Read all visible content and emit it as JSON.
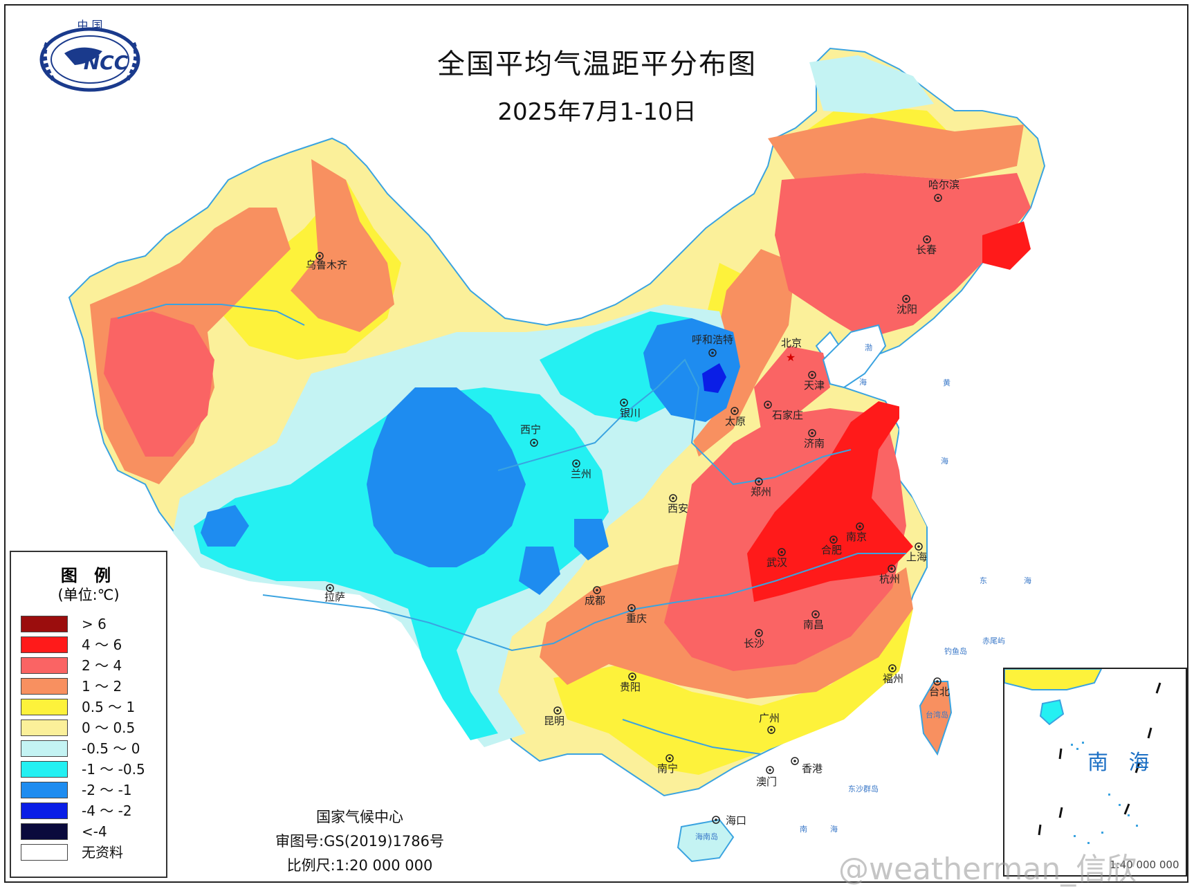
{
  "header": {
    "title": "全国平均气温距平分布图",
    "subtitle": "2025年7月1-10日"
  },
  "logo": {
    "top_text": "中 国",
    "badge_text": "NCC"
  },
  "legend": {
    "title": "图 例",
    "unit": "(单位:℃)",
    "items": [
      {
        "label": "> 6",
        "color": "#9b0d0d"
      },
      {
        "label": "4 ～ 6",
        "color": "#ff1a1a"
      },
      {
        "label": "2 ～ 4",
        "color": "#fa6464"
      },
      {
        "label": "1 ～ 2",
        "color": "#f89060"
      },
      {
        "label": "0.5 ～ 1",
        "color": "#fdf23b"
      },
      {
        "label": "0 ～ 0.5",
        "color": "#fbf09a"
      },
      {
        "label": "-0.5 ～ 0",
        "color": "#c4f3f3"
      },
      {
        "label": "-1 ～ -0.5",
        "color": "#24f0f2"
      },
      {
        "label": "-2 ～ -1",
        "color": "#1e8cf0"
      },
      {
        "label": "-4 ～ -2",
        "color": "#0a1ee6"
      },
      {
        "label": "<-4",
        "color": "#0a0a3c"
      },
      {
        "label": "无资料",
        "color": "#ffffff"
      }
    ]
  },
  "cities": [
    {
      "name": "乌鲁木齐"
    },
    {
      "name": "拉萨"
    },
    {
      "name": "西宁"
    },
    {
      "name": "兰州"
    },
    {
      "name": "银川"
    },
    {
      "name": "呼和浩特"
    },
    {
      "name": "北京"
    },
    {
      "name": "天津"
    },
    {
      "name": "石家庄"
    },
    {
      "name": "太原"
    },
    {
      "name": "济南"
    },
    {
      "name": "郑州"
    },
    {
      "name": "西安"
    },
    {
      "name": "成都"
    },
    {
      "name": "重庆"
    },
    {
      "name": "武汉"
    },
    {
      "name": "合肥"
    },
    {
      "name": "南京"
    },
    {
      "name": "上海"
    },
    {
      "name": "杭州"
    },
    {
      "name": "南昌"
    },
    {
      "name": "长沙"
    },
    {
      "name": "贵阳"
    },
    {
      "name": "昆明"
    },
    {
      "name": "南宁"
    },
    {
      "name": "广州"
    },
    {
      "name": "香港"
    },
    {
      "name": "澳门"
    },
    {
      "name": "海口"
    },
    {
      "name": "福州"
    },
    {
      "name": "台北"
    },
    {
      "name": "沈阳"
    },
    {
      "name": "长春"
    },
    {
      "name": "哈尔滨"
    }
  ],
  "sea_labels": [
    "渤",
    "海",
    "黄",
    "海",
    "东",
    "海",
    "南",
    "海",
    "钓鱼岛",
    "赤尾屿",
    "台湾岛",
    "海南岛",
    "东沙群岛"
  ],
  "inset": {
    "label": "南 海",
    "scale": "1:40 000 000"
  },
  "credits": {
    "org": "国家气候中心",
    "approval": "审图号:GS(2019)1786号",
    "scale": "比例尺:1:20 000 000"
  },
  "watermark": "@weatherman_信欣"
}
